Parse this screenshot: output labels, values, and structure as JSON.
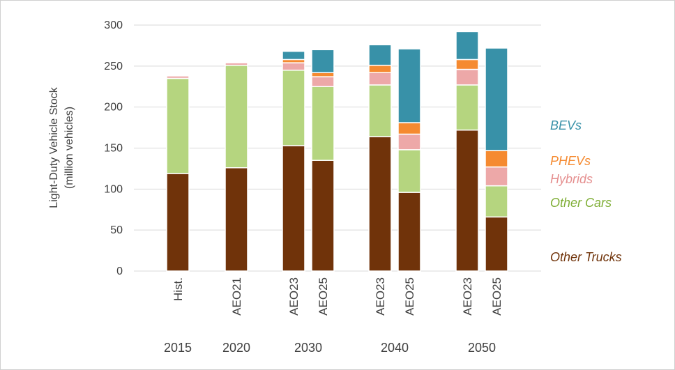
{
  "chart_data": {
    "type": "bar",
    "stacked": true,
    "ylabel_lines": [
      "Light-Duty Vehicle Stock",
      "(million vehicles)"
    ],
    "ylim": [
      0,
      300
    ],
    "yticks": [
      0,
      50,
      100,
      150,
      200,
      250,
      300
    ],
    "grid": true,
    "legend_position": "right",
    "categories": [
      "Hist.",
      "AEO21",
      "AEO23",
      "AEO25",
      "AEO23",
      "AEO25",
      "AEO23",
      "AEO25"
    ],
    "years": [
      {
        "label": "2015",
        "from": 0,
        "to": 0
      },
      {
        "label": "2020",
        "from": 1,
        "to": 1
      },
      {
        "label": "2030",
        "from": 2,
        "to": 3
      },
      {
        "label": "2040",
        "from": 4,
        "to": 5
      },
      {
        "label": "2050",
        "from": 6,
        "to": 7
      }
    ],
    "series": [
      {
        "name": "Other Trucks",
        "color": "#70330a",
        "values": [
          119,
          126,
          153,
          135,
          164,
          96,
          172,
          66
        ]
      },
      {
        "name": "Other Cars",
        "color": "#b5d57f",
        "values": [
          116,
          125,
          92,
          90,
          63,
          52,
          55,
          38
        ]
      },
      {
        "name": "Hybrids",
        "color": "#eda8a8",
        "values": [
          3,
          3,
          9,
          12,
          15,
          19,
          19,
          23
        ]
      },
      {
        "name": "PHEVs",
        "color": "#f58a30",
        "values": [
          0,
          0,
          4,
          5,
          9,
          14,
          12,
          20
        ]
      },
      {
        "name": "BEVs",
        "color": "#3891a8",
        "values": [
          0,
          0,
          10,
          28,
          25,
          90,
          34,
          125
        ]
      }
    ],
    "legend": [
      {
        "name": "BEVs",
        "color": "#3891a8"
      },
      {
        "name": "PHEVs",
        "color": "#f58a30"
      },
      {
        "name": "Hybrids",
        "color": "#e58f8f"
      },
      {
        "name": "Other Cars",
        "color": "#7fae36"
      },
      {
        "name": "Other Trucks",
        "color": "#70330a"
      }
    ]
  }
}
